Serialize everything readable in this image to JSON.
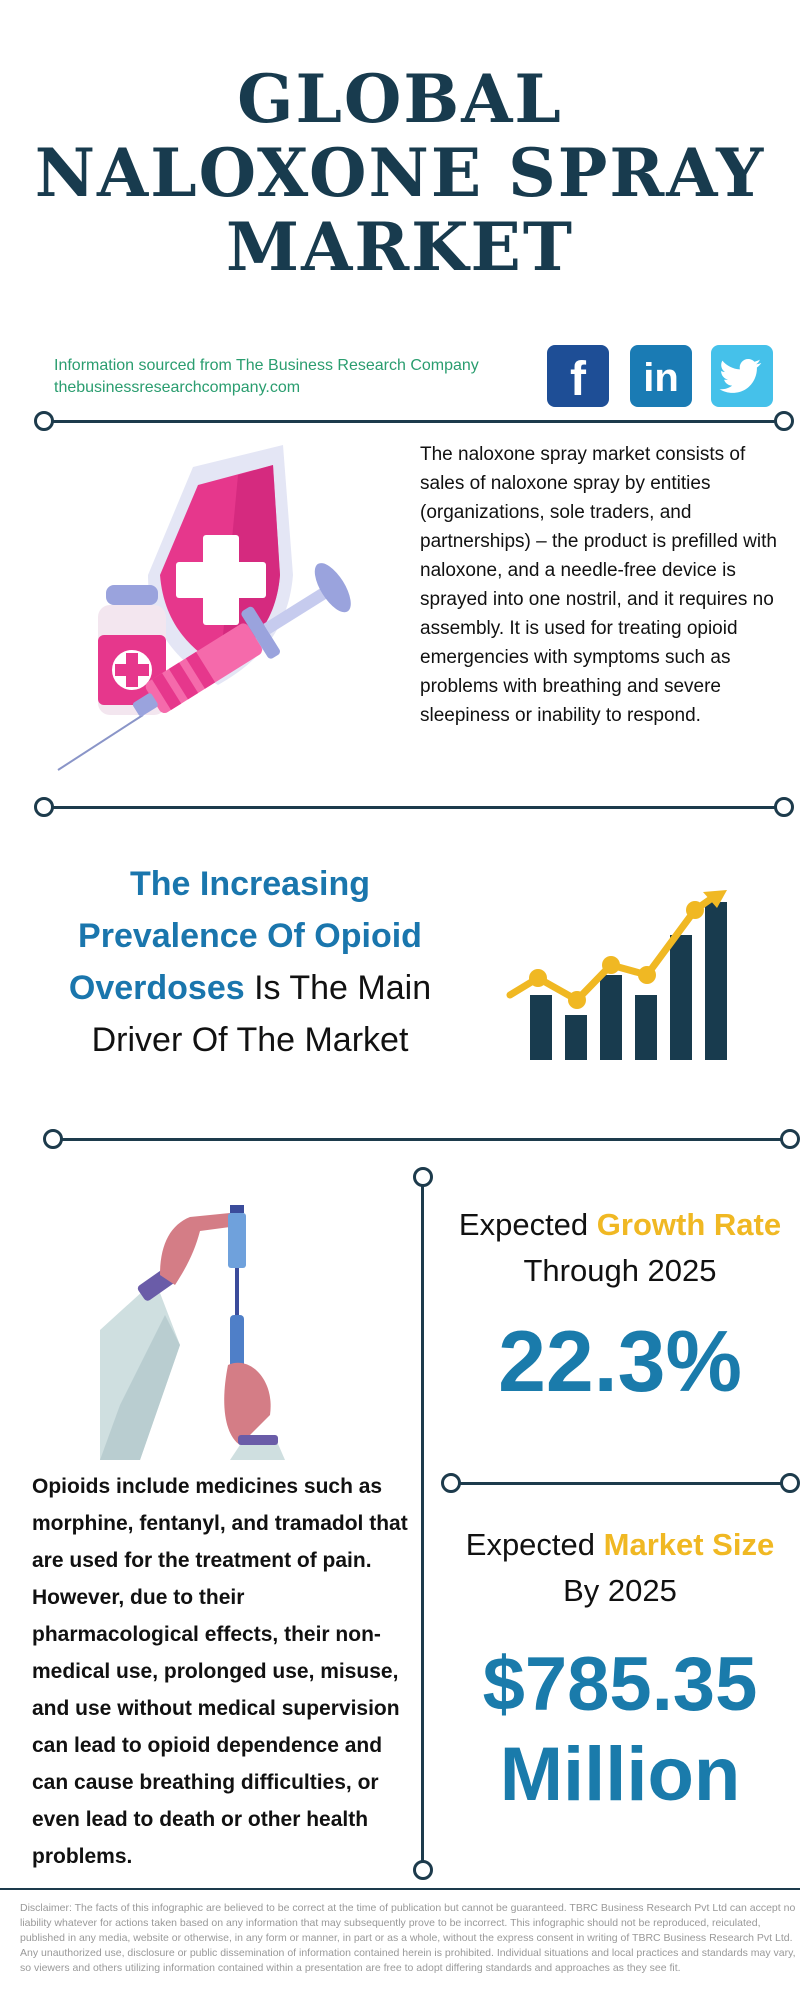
{
  "title": {
    "line1": "GLOBAL",
    "line2": "NALOXONE SPRAY",
    "line3": "MARKET"
  },
  "source": {
    "line1": "Information sourced from The Business Research Company",
    "line2": "thebusinessresearchcompany.com"
  },
  "social": {
    "facebook_glyph": "f",
    "linkedin_glyph": "in",
    "icons": [
      "facebook-icon",
      "linkedin-icon",
      "twitter-icon"
    ]
  },
  "about": {
    "text": "The naloxone spray market consists of sales of naloxone spray by entities (organizations, sole traders, and partnerships) – the product is prefilled with naloxone, and a needle-free device is sprayed into one nostril, and it requires no assembly. It is used for treating opioid emergencies with symptoms such as problems with breathing and severe sleepiness or inability to respond."
  },
  "driver": {
    "highlight": "The Increasing Prevalence Of Opioid Overdoses",
    "rest": " Is The Main Driver Of The Market"
  },
  "opioids": {
    "text": "Opioids include medicines such as morphine, fentanyl, and tramadol that are used for the treatment of pain. However, due to their pharmacological effects, their non-medical use, prolonged use, misuse, and use without medical supervision can lead to opioid dependence and can cause breathing difficulties, or even lead to death or other health problems."
  },
  "growth": {
    "prefix": "Expected ",
    "highlight": "Growth Rate",
    "line2": "Through 2025",
    "value": "22.3%"
  },
  "market_size": {
    "prefix": "Expected ",
    "highlight": "Market Size",
    "line2": "By 2025",
    "value_line1": "$785.35",
    "value_line2": "Million"
  },
  "disclaimer": "Disclaimer: The facts of this infographic are believed to be correct at the time of publication but cannot be guaranteed. TBRC Business Research Pvt Ltd can accept no liability whatever for actions taken based on any information that may subsequently prove to be incorrect. This infographic should not be reproduced, reiculated, published in any media, website or otherwise, in any form or manner, in part or as a whole, without the express consent in writing of TBRC Business Research Pvt Ltd. Any unauthorized use, disclosure or public dissemination of information contained herein is prohibited. Individual situations and local practices and standards may vary, so viewers and others utilizing information contained within a presentation are free to adopt differing standards and approaches as they see fit.",
  "colors": {
    "navy": "#183b4e",
    "blue": "#1a76ad",
    "yellow": "#f0b823",
    "green": "#2a9d6f",
    "pink": "#e63b8c"
  }
}
